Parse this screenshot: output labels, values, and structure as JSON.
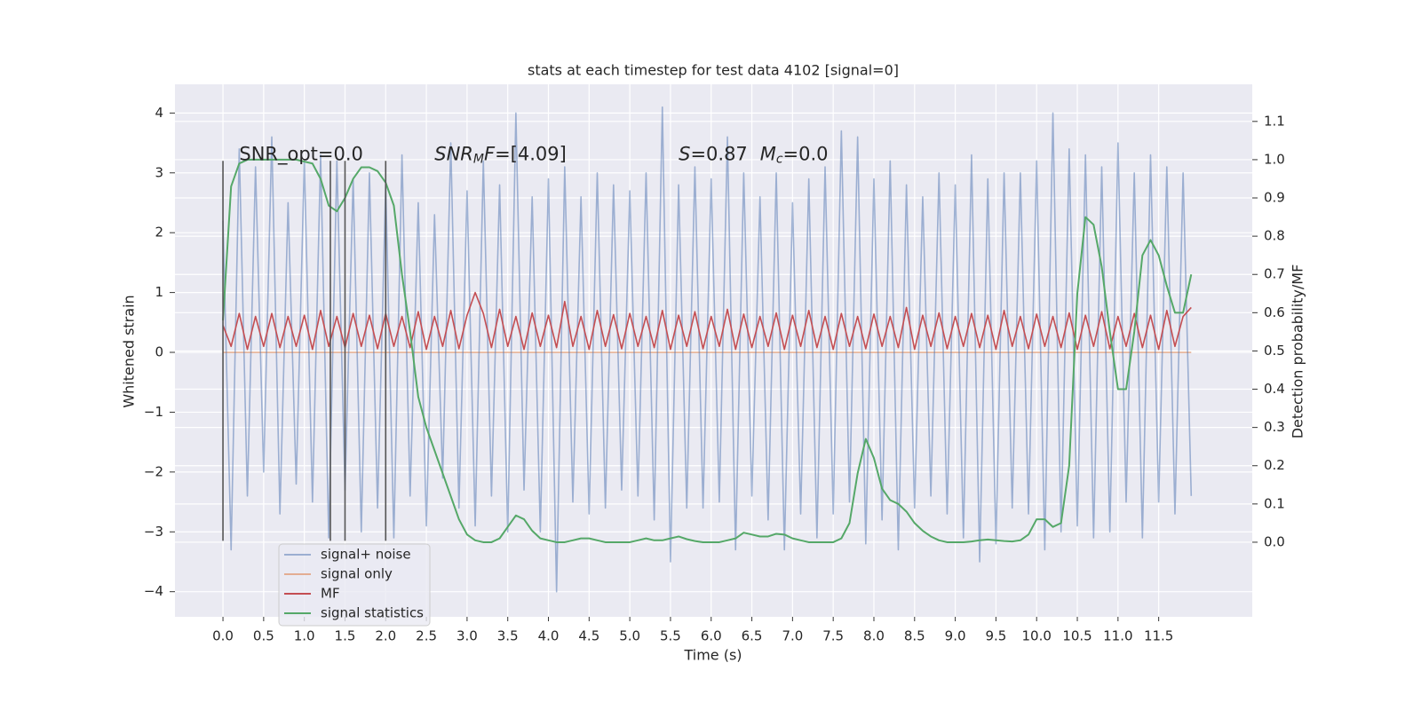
{
  "chart_data": {
    "type": "line",
    "title": "stats at each timestep for test data 4102 [signal=0]",
    "xlabel": "Time (s)",
    "ylabel": "Whitened strain",
    "y2label": "Detection probability/MF",
    "xlim": [
      -0.59,
      12.65
    ],
    "ylim": [
      -4.42,
      4.48
    ],
    "y2lim": [
      -0.195,
      1.197
    ],
    "xticks": [
      {
        "value": 0,
        "label": "0.0"
      },
      0.5,
      {
        "value": 1,
        "label": "1.0"
      },
      1.5,
      {
        "value": 2,
        "label": "2.0"
      },
      2.5,
      {
        "value": 3,
        "label": "3.0"
      },
      3.5,
      {
        "value": 4,
        "label": "4.0"
      },
      4.5,
      {
        "value": 5,
        "label": "5.0"
      },
      5.5,
      {
        "value": 6,
        "label": "6.0"
      },
      6.5,
      {
        "value": 7,
        "label": "7.0"
      },
      7.5,
      {
        "value": 8,
        "label": "8.0"
      },
      8.5,
      {
        "value": 9,
        "label": "9.0"
      },
      9.5,
      {
        "value": 10,
        "label": "10.0"
      },
      10.5,
      {
        "value": 11,
        "label": "11.0"
      },
      11.5
    ],
    "yticks": [
      {
        "value": -4,
        "label": "−4"
      },
      {
        "value": -3,
        "label": "−3"
      },
      {
        "value": -2,
        "label": "−2"
      },
      {
        "value": -1,
        "label": "−1"
      },
      0,
      1,
      2,
      3,
      4
    ],
    "y2ticks": [
      {
        "value": 0,
        "label": "0.0"
      },
      0.1,
      0.2,
      0.3,
      0.4,
      0.5,
      0.6,
      0.7,
      0.8,
      0.9,
      {
        "value": 1,
        "label": "1.0"
      },
      1.1
    ],
    "grid": true,
    "background": "#eaeaf2",
    "legend": "lower left",
    "vlines": {
      "x": [
        0,
        1.32,
        1.5,
        2.0
      ],
      "ymin": -3.15,
      "ymax": 3.2,
      "color": "#555555"
    },
    "annotations": [
      {
        "x": 0.2,
        "y": 3.3,
        "parts": [
          {
            "text": "SNR_opt=0.0"
          }
        ]
      },
      {
        "x": 2.6,
        "y": 3.3,
        "parts": [
          {
            "text": "SNR",
            "style": "italic"
          },
          {
            "text": "M",
            "style": "italic-sub"
          },
          {
            "text": "F",
            "style": "italic"
          },
          {
            "text": "=[4.09]"
          }
        ]
      },
      {
        "x": 5.6,
        "y": 3.3,
        "parts": [
          {
            "text": "S",
            "style": "italic"
          },
          {
            "text": "=0.87"
          }
        ]
      },
      {
        "x": 6.6,
        "y": 3.3,
        "parts": [
          {
            "text": "M",
            "style": "italic"
          },
          {
            "text": "c",
            "style": "italic-sub"
          },
          {
            "text": "=0.0"
          }
        ]
      }
    ],
    "x": [
      0,
      0.1,
      0.2,
      0.3,
      0.4,
      0.5,
      0.6,
      0.7,
      0.8,
      0.9,
      1,
      1.1,
      1.2,
      1.3,
      1.4,
      1.5,
      1.6,
      1.7,
      1.8,
      1.9,
      2,
      2.1,
      2.2,
      2.3,
      2.4,
      2.5,
      2.6,
      2.7,
      2.8,
      2.9,
      3,
      3.1,
      3.2,
      3.3,
      3.4,
      3.5,
      3.6,
      3.7,
      3.8,
      3.9,
      4,
      4.1,
      4.2,
      4.3,
      4.4,
      4.5,
      4.6,
      4.7,
      4.8,
      4.9,
      5,
      5.1,
      5.2,
      5.3,
      5.4,
      5.5,
      5.6,
      5.7,
      5.8,
      5.9,
      6,
      6.1,
      6.2,
      6.3,
      6.4,
      6.5,
      6.6,
      6.7,
      6.8,
      6.9,
      7,
      7.1,
      7.2,
      7.3,
      7.4,
      7.5,
      7.6,
      7.7,
      7.8,
      7.9,
      8,
      8.1,
      8.2,
      8.3,
      8.4,
      8.5,
      8.6,
      8.7,
      8.8,
      8.9,
      9,
      9.1,
      9.2,
      9.3,
      9.4,
      9.5,
      9.6,
      9.7,
      9.8,
      9.9,
      10,
      10.1,
      10.2,
      10.3,
      10.4,
      10.5,
      10.6,
      10.7,
      10.8,
      10.9,
      11,
      11.1,
      11.2,
      11.3,
      11.4,
      11.5,
      11.6,
      11.7,
      11.8,
      11.9
    ],
    "series": [
      {
        "name": "signal+ noise",
        "color": "#4c72b0",
        "opacity": 0.5,
        "values": [
          2.2,
          -3.3,
          3.4,
          -2.4,
          3.1,
          -2.0,
          3.6,
          -2.7,
          2.5,
          -2.2,
          3.2,
          -2.5,
          3.3,
          -3.1,
          3.2,
          -2.3,
          2.9,
          -3.0,
          3.0,
          -2.6,
          2.8,
          -3.1,
          3.3,
          -2.4,
          2.5,
          -2.9,
          2.3,
          -2.1,
          3.5,
          -2.6,
          2.7,
          -2.9,
          3.2,
          -2.4,
          2.8,
          -3.0,
          4.0,
          -2.3,
          2.6,
          -3.0,
          2.9,
          -4.0,
          3.1,
          -2.5,
          2.6,
          -2.7,
          3.0,
          -2.6,
          2.8,
          -2.3,
          2.7,
          -2.4,
          3.0,
          -2.8,
          4.1,
          -3.5,
          2.8,
          -2.6,
          3.1,
          -2.6,
          2.9,
          -2.5,
          3.6,
          -3.3,
          3.0,
          -2.4,
          2.6,
          -2.8,
          3.0,
          -3.3,
          2.5,
          -2.7,
          2.9,
          -3.1,
          3.1,
          -2.7,
          3.7,
          -2.5,
          3.6,
          -3.2,
          2.9,
          -2.8,
          3.2,
          -3.3,
          2.8,
          -2.6,
          2.6,
          -2.4,
          3.0,
          -2.7,
          2.8,
          -3.1,
          3.3,
          -3.5,
          2.9,
          -3.2,
          3.0,
          -2.6,
          3.0,
          -2.7,
          3.2,
          -3.3,
          4.0,
          -3.0,
          3.4,
          -2.9,
          3.3,
          -3.1,
          3.1,
          -3.0,
          3.5,
          -2.5,
          3.0,
          -3.1,
          3.3,
          -2.5,
          3.1,
          -2.7,
          3.0,
          -2.4
        ]
      },
      {
        "name": "signal only",
        "color": "#dd8452",
        "opacity": 0.6,
        "values": [
          0,
          0,
          0,
          0,
          0,
          0,
          0,
          0,
          0,
          0,
          0,
          0,
          0,
          0,
          0,
          0,
          0,
          0,
          0,
          0,
          0,
          0,
          0,
          0,
          0,
          0,
          0,
          0,
          0,
          0,
          0,
          0,
          0,
          0,
          0,
          0,
          0,
          0,
          0,
          0,
          0,
          0,
          0,
          0,
          0,
          0,
          0,
          0,
          0,
          0,
          0,
          0,
          0,
          0,
          0,
          0,
          0,
          0,
          0,
          0,
          0,
          0,
          0,
          0,
          0,
          0,
          0,
          0,
          0,
          0,
          0,
          0,
          0,
          0,
          0,
          0,
          0,
          0,
          0,
          0,
          0,
          0,
          0,
          0,
          0,
          0,
          0,
          0,
          0,
          0,
          0,
          0,
          0,
          0,
          0,
          0,
          0,
          0,
          0,
          0,
          0,
          0,
          0,
          0,
          0,
          0,
          0,
          0,
          0,
          0,
          0,
          0,
          0,
          0,
          0,
          0,
          0,
          0,
          0,
          0
        ]
      },
      {
        "name": "MF",
        "color": "#c44e52",
        "opacity": 1,
        "values": [
          0.45,
          0.1,
          0.65,
          0.05,
          0.6,
          0.1,
          0.65,
          0.08,
          0.6,
          0.1,
          0.62,
          0.05,
          0.7,
          0.1,
          0.6,
          0.08,
          0.65,
          0.1,
          0.62,
          0.06,
          0.65,
          0.1,
          0.6,
          0.08,
          0.68,
          0.05,
          0.6,
          0.1,
          0.7,
          0.06,
          0.62,
          1.0,
          0.65,
          0.08,
          0.72,
          0.1,
          0.6,
          0.05,
          0.66,
          0.1,
          0.62,
          0.08,
          0.85,
          0.1,
          0.6,
          0.05,
          0.7,
          0.1,
          0.63,
          0.06,
          0.65,
          0.1,
          0.6,
          0.08,
          0.7,
          0.05,
          0.62,
          0.1,
          0.68,
          0.06,
          0.6,
          0.1,
          0.72,
          0.05,
          0.64,
          0.08,
          0.6,
          0.1,
          0.66,
          0.05,
          0.62,
          0.1,
          0.7,
          0.08,
          0.6,
          0.05,
          0.65,
          0.1,
          0.6,
          0.06,
          0.64,
          0.1,
          0.6,
          0.08,
          0.75,
          0.05,
          0.62,
          0.1,
          0.66,
          0.06,
          0.6,
          0.1,
          0.65,
          0.08,
          0.62,
          0.05,
          0.7,
          0.1,
          0.6,
          0.06,
          0.64,
          0.1,
          0.6,
          0.08,
          0.66,
          0.05,
          0.62,
          0.1,
          0.68,
          0.06,
          0.6,
          0.1,
          0.65,
          0.08,
          0.62,
          0.05,
          0.7,
          0.1,
          0.6,
          0.75
        ]
      },
      {
        "name": "signal statistics",
        "color": "#55a868",
        "opacity": 1,
        "axis": "y2",
        "values": [
          0.58,
          0.93,
          0.99,
          1.0,
          1.0,
          1.0,
          1.0,
          1.0,
          1.0,
          1.0,
          0.995,
          0.99,
          0.95,
          0.88,
          0.865,
          0.9,
          0.95,
          0.98,
          0.98,
          0.97,
          0.94,
          0.88,
          0.7,
          0.55,
          0.38,
          0.3,
          0.24,
          0.18,
          0.12,
          0.06,
          0.02,
          0.005,
          0.0,
          0.0,
          0.01,
          0.04,
          0.07,
          0.06,
          0.03,
          0.01,
          0.005,
          0.0,
          0.0,
          0.005,
          0.01,
          0.01,
          0.005,
          0.0,
          0.0,
          0.0,
          0.0,
          0.005,
          0.01,
          0.005,
          0.005,
          0.01,
          0.015,
          0.008,
          0.003,
          0.0,
          0.0,
          0.0,
          0.005,
          0.01,
          0.025,
          0.02,
          0.015,
          0.015,
          0.022,
          0.02,
          0.01,
          0.005,
          0.0,
          0.0,
          0.0,
          0.0,
          0.01,
          0.05,
          0.18,
          0.27,
          0.22,
          0.14,
          0.11,
          0.1,
          0.08,
          0.05,
          0.03,
          0.015,
          0.005,
          0.0,
          0.0,
          0.0,
          0.002,
          0.005,
          0.007,
          0.005,
          0.003,
          0.002,
          0.005,
          0.02,
          0.06,
          0.06,
          0.04,
          0.05,
          0.2,
          0.65,
          0.85,
          0.83,
          0.72,
          0.55,
          0.4,
          0.4,
          0.55,
          0.75,
          0.79,
          0.75,
          0.67,
          0.6,
          0.6,
          0.7
        ]
      }
    ]
  }
}
